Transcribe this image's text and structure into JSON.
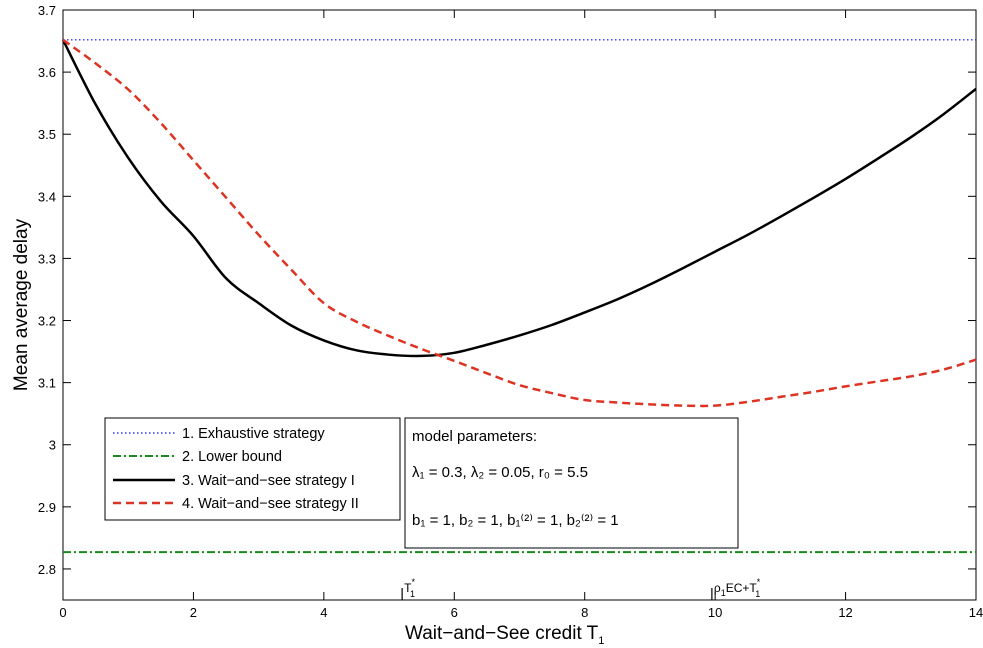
{
  "chart_data": {
    "type": "line",
    "xlabel": "Wait−and−See credit T",
    "xlabel_sub": "1",
    "ylabel": "Mean average delay",
    "xlim": [
      0,
      14
    ],
    "ylim": [
      2.75,
      3.7
    ],
    "xticks": [
      0,
      2,
      4,
      6,
      8,
      10,
      12,
      14
    ],
    "yticks": [
      2.8,
      2.9,
      3.0,
      3.1,
      3.2,
      3.3,
      3.4,
      3.5,
      3.6,
      3.7
    ],
    "grid": false,
    "legend_placement": "lower-left",
    "series": [
      {
        "name": "1. Exhaustive strategy",
        "color": "#3333ff",
        "style": "dotted",
        "x": [
          0,
          14
        ],
        "y": [
          3.652,
          3.652
        ]
      },
      {
        "name": "2. Lower bound",
        "color": "#1a8a1a",
        "style": "dashdot",
        "x": [
          0,
          14
        ],
        "y": [
          2.827,
          2.827
        ]
      },
      {
        "name": "3. Wait−and−see strategy I",
        "color": "#000000",
        "style": "solid",
        "x": [
          0,
          0.5,
          1,
          1.5,
          2,
          2.5,
          3,
          3.5,
          4,
          4.5,
          5,
          5.5,
          6,
          6.5,
          7,
          7.5,
          8,
          8.5,
          9,
          9.5,
          10,
          10.5,
          11,
          11.5,
          12,
          12.5,
          13,
          13.5,
          14
        ],
        "y": [
          3.652,
          3.548,
          3.462,
          3.392,
          3.336,
          3.268,
          3.228,
          3.192,
          3.168,
          3.152,
          3.145,
          3.143,
          3.148,
          3.161,
          3.176,
          3.193,
          3.213,
          3.234,
          3.258,
          3.284,
          3.311,
          3.338,
          3.367,
          3.397,
          3.428,
          3.461,
          3.495,
          3.532,
          3.573
        ]
      },
      {
        "name": "4. Wait−and−see strategy II",
        "color": "#dd3322",
        "style": "dashed",
        "x": [
          0,
          0.5,
          1,
          1.5,
          2,
          2.5,
          3,
          3.5,
          4,
          4.5,
          5,
          5.5,
          6,
          6.5,
          7,
          7.5,
          8,
          8.5,
          9,
          9.5,
          10,
          10.5,
          11,
          11.5,
          12,
          12.5,
          13,
          13.5,
          14
        ],
        "y": [
          3.652,
          3.614,
          3.572,
          3.518,
          3.458,
          3.398,
          3.338,
          3.282,
          3.228,
          3.198,
          3.175,
          3.154,
          3.135,
          3.115,
          3.096,
          3.083,
          3.072,
          3.068,
          3.065,
          3.063,
          3.063,
          3.069,
          3.077,
          3.085,
          3.094,
          3.102,
          3.11,
          3.121,
          3.137
        ]
      }
    ],
    "markers": [
      {
        "x": 5.2,
        "label": "T",
        "sup": "*",
        "sub": "1"
      },
      {
        "x": 9.95,
        "label": "ρ",
        "sub": "1",
        "label2": "EC+T",
        "sup": "*",
        "sub2": "1"
      }
    ],
    "legend": [
      "1. Exhaustive strategy",
      "2. Lower bound",
      "3. Wait−and−see strategy I",
      "4. Wait−and−see strategy II"
    ],
    "annotation": {
      "title": "model parameters:",
      "line1": "λ₁ = 0.3,  λ₂ = 0.05, r₀ = 5.5",
      "line2": "b₁ = 1,  b₂ = 1,  b₁⁽²⁾ = 1,  b₂⁽²⁾ = 1"
    }
  }
}
